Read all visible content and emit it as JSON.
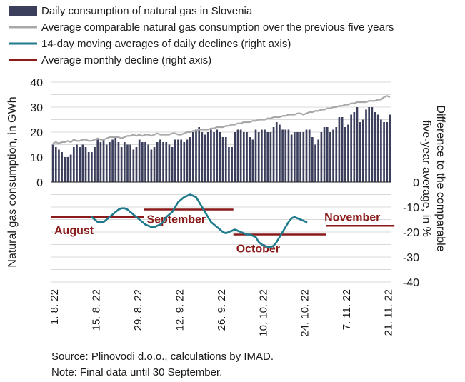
{
  "chart_data": {
    "type": "bar+line",
    "legend": [
      {
        "label": "Daily consumption of natural gas in Slovenia",
        "marker": "bar",
        "color": "#3b3f5c"
      },
      {
        "label": "Average comparable natural gas consumption over the previous five years",
        "marker": "line",
        "color": "#a8a8a8"
      },
      {
        "label": "14-day moving averages of daily declines (right axis)",
        "marker": "line",
        "color": "#1f7a8c"
      },
      {
        "label": "Average monthly decline (right axis)",
        "marker": "line",
        "color": "#8b1a1a"
      }
    ],
    "ylabel_left": "Natural gas consumption, in GWh",
    "ylabel_right": "Difference to the comparable five-year average, in %",
    "left_axis": {
      "min": 0,
      "max": 40,
      "ticks": [
        "0",
        "10",
        "20",
        "30",
        "40"
      ]
    },
    "right_axis": {
      "min": -40,
      "max": 0,
      "ticks": [
        "0",
        "-10",
        "-20",
        "-30",
        "-40"
      ]
    },
    "x_start": "2022-08-01",
    "x_ticks": [
      "1. 8. 22",
      "15. 8. 22",
      "29. 8. 22",
      "12. 9. 22",
      "26. 9. 22",
      "10. 10. 22",
      "24. 10. 22",
      "7. 11. 22",
      "21. 11. 22"
    ],
    "daily_consumption": [
      15,
      14,
      13,
      12,
      10,
      10,
      11,
      14,
      15,
      14,
      15,
      14,
      12,
      12,
      14,
      17,
      16,
      17,
      15,
      16,
      17,
      18,
      16,
      14,
      16,
      15,
      15,
      13,
      14,
      17,
      16,
      16,
      15,
      13,
      14,
      16,
      17,
      16,
      16,
      15,
      14,
      17,
      17,
      17,
      16,
      17,
      18,
      20,
      21,
      22,
      20,
      19,
      20,
      21,
      20,
      21,
      20,
      18,
      18,
      14,
      14,
      20,
      21,
      21,
      20,
      20,
      18,
      17,
      21,
      20,
      21,
      21,
      20,
      20,
      22,
      24,
      23,
      21,
      21,
      21,
      19,
      20,
      20,
      20,
      20,
      21,
      21,
      18,
      15,
      17,
      20,
      22,
      22,
      20,
      21,
      22,
      26,
      26,
      22,
      23,
      27,
      28,
      30,
      24,
      25,
      29,
      30,
      30,
      28,
      27,
      25,
      24,
      24,
      27
    ],
    "five_year_average": [
      15.5,
      16,
      15.5,
      16,
      16,
      16.5,
      16,
      17,
      16.5,
      16.5,
      17,
      17,
      16.5,
      16.5,
      17,
      17.5,
      17,
      17,
      17.5,
      18,
      18,
      18,
      18,
      17.5,
      18,
      18.5,
      18.5,
      19,
      18.5,
      19,
      18.5,
      19,
      19,
      18.5,
      19,
      19.5,
      19,
      19,
      19,
      19,
      19.5,
      19.5,
      19,
      19,
      19.5,
      20,
      20,
      20.5,
      20.5,
      21,
      21,
      21,
      21,
      21.5,
      21.5,
      22,
      22,
      22,
      22.5,
      22.5,
      23,
      23,
      23.5,
      23.5,
      24,
      24,
      24,
      24.5,
      24.5,
      25,
      25,
      25,
      25.5,
      25.5,
      26,
      26,
      26,
      26.5,
      26.5,
      27,
      27,
      27,
      27.5,
      27.5,
      27,
      27.5,
      28,
      28,
      28.5,
      28.5,
      29,
      29,
      29.5,
      29.5,
      30,
      30,
      30.5,
      30.5,
      31,
      31,
      31.5,
      31.5,
      32,
      32,
      32,
      32,
      32.5,
      32.5,
      32.5,
      33,
      33,
      34,
      34.5,
      34
    ],
    "moving_average_decline": [
      -14,
      -15,
      -16,
      -16,
      -16,
      -15,
      -14,
      -13,
      -12,
      -11,
      -10.5,
      -10.5,
      -11,
      -12,
      -13,
      -14,
      -15,
      -16,
      -17,
      -17.5,
      -18,
      -18,
      -17.5,
      -17,
      -16,
      -14,
      -13,
      -12,
      -10,
      -8,
      -7,
      -6,
      -5.5,
      -5,
      -5.5,
      -6,
      -8,
      -10,
      -12,
      -14,
      -16,
      -17,
      -18,
      -19,
      -20,
      -20.5,
      -20,
      -19.5,
      -19,
      -19.5,
      -20,
      -20.5,
      -21,
      -21,
      -21.5,
      -22,
      -24,
      -25,
      -25.5,
      -26,
      -26,
      -25.5,
      -24,
      -22,
      -20,
      -18,
      -16,
      -14.5,
      -14,
      -14.5,
      -15,
      -15.5,
      -16
    ],
    "moving_average_start_index": 13,
    "monthly_averages": [
      {
        "label": "August",
        "value": -14,
        "start_day": 0,
        "end_day": 31
      },
      {
        "label": "September",
        "value": -11,
        "start_day": 31,
        "end_day": 61
      },
      {
        "label": "October",
        "value": -21,
        "start_day": 61,
        "end_day": 92
      },
      {
        "label": "November",
        "value": -17.5,
        "start_day": 92,
        "end_day": 115
      }
    ]
  },
  "footer": {
    "source": "Source: Plinovodi d.o.o., calculations by IMAD.",
    "note": "Note: Final data until 30 September."
  }
}
